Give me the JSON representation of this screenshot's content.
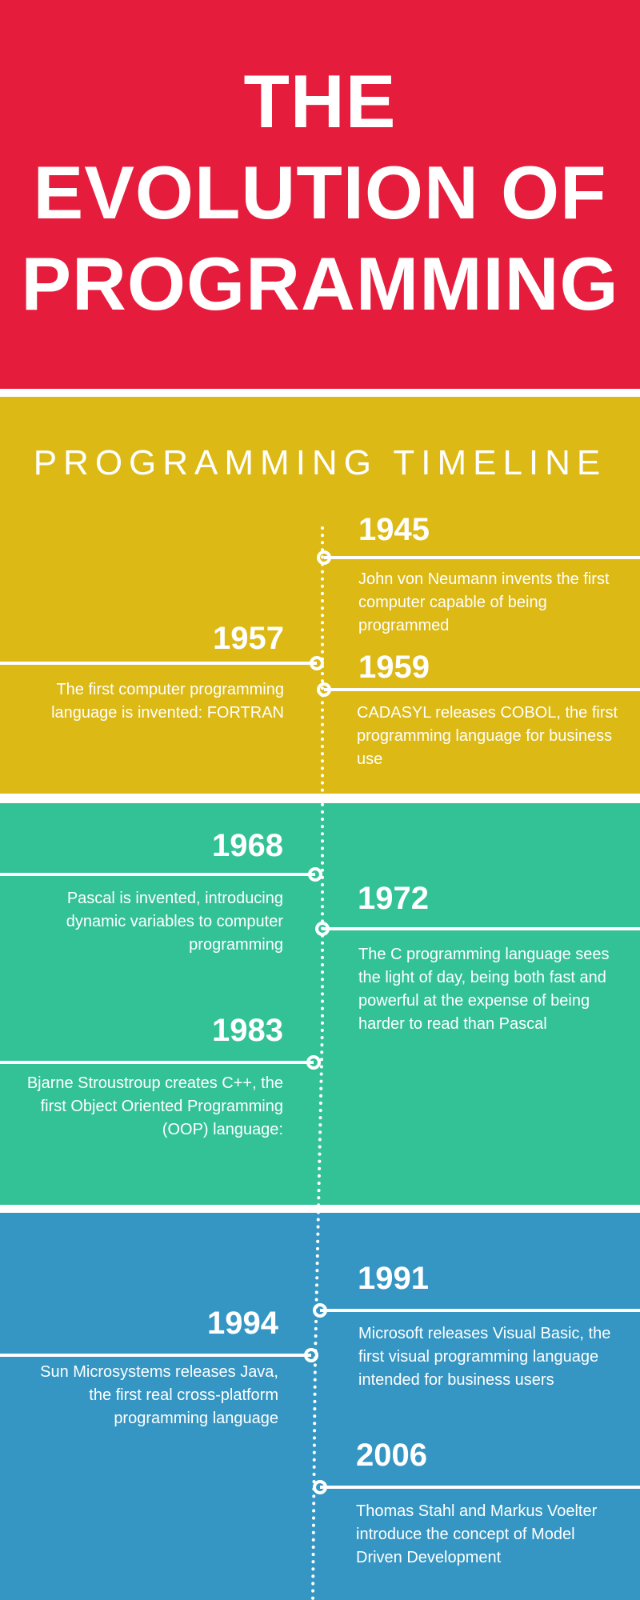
{
  "header": {
    "title_lines": [
      "THE",
      "EVOLUTION OF",
      "PROGRAMMING"
    ]
  },
  "subtitle": "PROGRAMMING TIMELINE",
  "colors": {
    "header_red": "#e61c3c",
    "band_yellow": "#dcb915",
    "band_green": "#33c296",
    "band_blue": "#3596c3",
    "text": "#ffffff"
  },
  "events": [
    {
      "year": "1945",
      "side": "right",
      "text": "John von Neumann invents the first computer capable of being programmed"
    },
    {
      "year": "1957",
      "side": "left",
      "text": "The first computer programming language is invented: FORTRAN"
    },
    {
      "year": "1959",
      "side": "right",
      "text": "CADASYL releases COBOL, the first programming language for business use"
    },
    {
      "year": "1968",
      "side": "left",
      "text": "Pascal is invented, introducing dynamic variables to computer programming"
    },
    {
      "year": "1972",
      "side": "right",
      "text": "The C programming language sees the light of day, being both fast and powerful at the expense of being harder to read than Pascal"
    },
    {
      "year": "1983",
      "side": "left",
      "text": "Bjarne Stroustroup creates C++, the first Object Oriented Programming (OOP) language:"
    },
    {
      "year": "1991",
      "side": "right",
      "text": "Microsoft releases Visual Basic, the first visual programming language intended for business users"
    },
    {
      "year": "1994",
      "side": "left",
      "text": "Sun Microsystems releases Java, the first real cross-platform programming language"
    },
    {
      "year": "2006",
      "side": "right",
      "text": "Thomas Stahl and Markus Voelter introduce the concept of Model Driven Development"
    }
  ]
}
